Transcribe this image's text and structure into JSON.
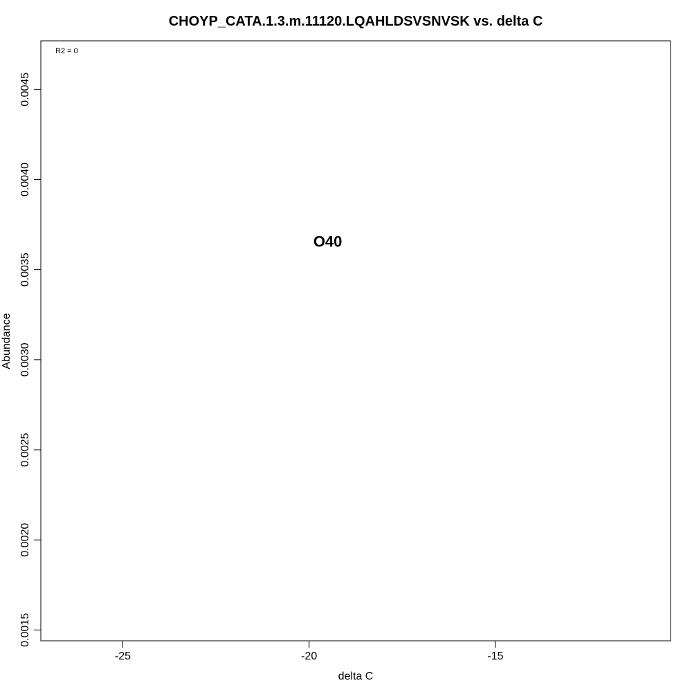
{
  "chart_data": {
    "type": "scatter",
    "title": "CHOYP_CATA.1.3.m.11120.LQAHLDSVSNVSK vs. delta C",
    "xlabel": "delta C",
    "ylabel": "Abundance",
    "xlim": [
      -27.2,
      -10.3
    ],
    "ylim": [
      0.00144,
      0.00477
    ],
    "x_ticks": [
      -25,
      -20,
      -15
    ],
    "x_tick_labels": [
      "-25",
      "-20",
      "-15"
    ],
    "y_ticks": [
      0.0015,
      0.002,
      0.0025,
      0.003,
      0.0035,
      0.004,
      0.0045
    ],
    "y_tick_labels": [
      "0.0015",
      "0.0020",
      "0.0025",
      "0.0030",
      "0.0035",
      "0.0040",
      "0.0045"
    ],
    "points": [
      {
        "x": -19.5,
        "y": 0.00365,
        "label": "O40"
      }
    ],
    "annotation": "R2 = 0",
    "grid": false,
    "legend": "none"
  }
}
